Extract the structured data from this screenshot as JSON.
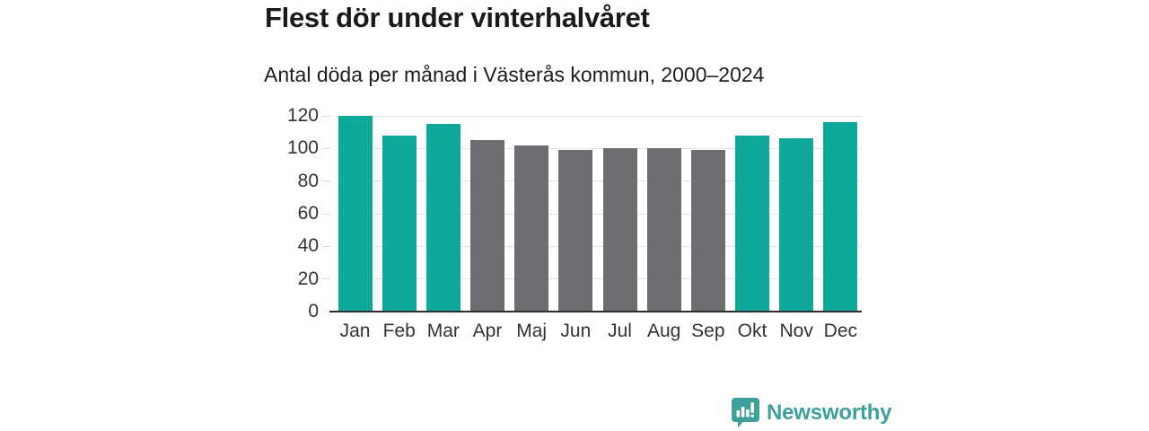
{
  "chart": {
    "title": "Flest dör under vinterhalvåret",
    "subtitle": "Antal döda per månad i Västerås kommun, 2000–2024"
  },
  "chart_data": {
    "type": "bar",
    "title": "Flest dör under vinterhalvåret",
    "subtitle": "Antal döda per månad i Västerås kommun, 2000–2024",
    "categories": [
      "Jan",
      "Feb",
      "Mar",
      "Apr",
      "Maj",
      "Jun",
      "Jul",
      "Aug",
      "Sep",
      "Okt",
      "Nov",
      "Dec"
    ],
    "values": [
      120,
      108,
      115,
      105,
      102,
      99,
      100,
      100,
      99,
      108,
      106,
      116
    ],
    "bar_colors": [
      "#0fa99c",
      "#0fa99c",
      "#0fa99c",
      "#6e6e72",
      "#6e6e72",
      "#6e6e72",
      "#6e6e72",
      "#6e6e72",
      "#6e6e72",
      "#0fa99c",
      "#0fa99c",
      "#0fa99c"
    ],
    "highlight_color": "#0fa99c",
    "base_color": "#6e6e72",
    "xlabel": "",
    "ylabel": "",
    "ylim": [
      0,
      120
    ],
    "yticks": [
      0,
      20,
      40,
      60,
      80,
      100,
      120
    ],
    "grid": "horizontal",
    "legend_position": "none"
  },
  "footer": {
    "brand": "Newsworthy",
    "brand_color": "#3da09a",
    "logo_icon": "bar-chart-speech-bubble-icon"
  }
}
